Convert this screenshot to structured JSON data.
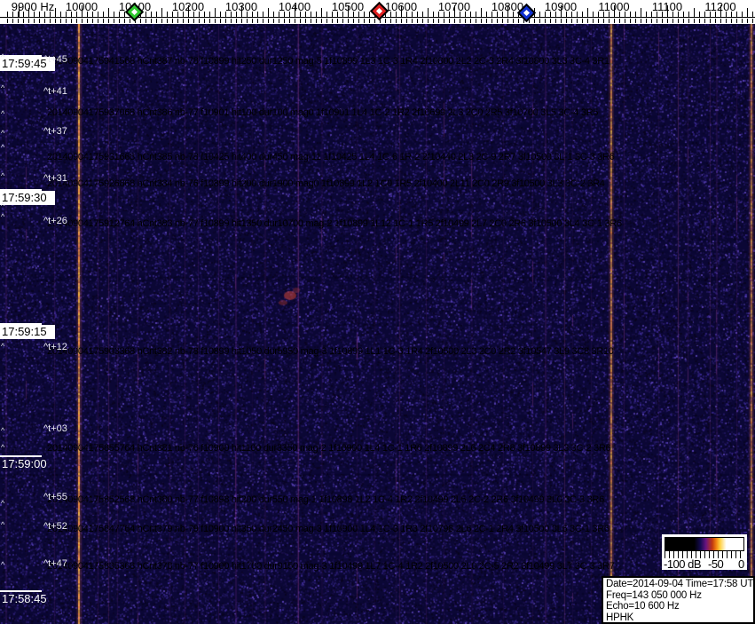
{
  "ruler": {
    "labels": [
      "9900 Hz",
      "10000",
      "10100",
      "10200",
      "10300",
      "10400",
      "10500",
      "10600",
      "10700",
      "10800",
      "10900",
      "11000",
      "11100",
      "11200"
    ],
    "markers": [
      {
        "id": "green",
        "name": "green-diamond-marker",
        "color": "#2ec82e"
      },
      {
        "id": "red",
        "name": "red-diamond-marker",
        "color": "#e02020"
      },
      {
        "id": "blue",
        "name": "blue-diamond-marker",
        "color": "#1030d0"
      }
    ]
  },
  "time_axis": {
    "labels": [
      "17:59:45",
      "17:59:30",
      "17:59:15",
      "17:59:00",
      "17:58:45"
    ]
  },
  "left_marks": {
    "glyph": "^"
  },
  "events": [
    {
      "marker": "^t+45",
      "text": "20140904175941568 hCnt387 nb-78 f10899 hit250 dur1250 mag-5 1f10899 1L3 1C-3 1R4 2f10800 2L2 2C-3 2R4 3f10800 3L3 3C-4 3R1"
    },
    {
      "marker": "^t+41",
      "text": "20140904175937068 hCnt386 nb-77 f10901 hit100 dur100 mag0 1f10901 1L4 1C-2 1R2 2f10699 2L3 2C0 2R5 3f10700 3L5 3C-4 3R5"
    },
    {
      "marker": "^t+37",
      "text": "20140904175931668 hCnt385 nb-78 f10425 hit400 dur450 mag-11 1f10425 1L4 1C-6 1R-2 2f10440 2L3 2C-9 2R7 3f10500 3L-1 3C-3 3R6"
    },
    {
      "marker": "^t+31",
      "text": "20140904175926868 hCnt384 nb-76 f10899 hit200 dur1900 mag0 1f10899 1L2 1C0 1R5 2f10400 2L11 2C0 2R9 3f10500 3L3 3C-2 3R4"
    },
    {
      "marker": "^t+26",
      "text": "20140904175912764 hCnt383 nb-77 f10899 hit1350 dur10700 mag-2 1f10899 1L12 1C-1 1R5 2f10499 2L7 2C0 2R6 3f10500 3L4 3C-1 3R6"
    },
    {
      "marker": "^t+12",
      "text": "20140904175903368 hCnt382 nb-78 f10899 hit1050 dur5950 mag-3 1f10899 1L1 1C-3 1R4 2f10500 2L3 2C0 2R2 3f10547 3L9 3C8 3R10"
    },
    {
      "marker": "^t+03",
      "text": "20140904175855764 hCnt381 nb-76 f10900 hit1100 dur3350 mag-2 1f10900 1L4 1C-1 1R6 2f10899 2L6 2C4 2R8 3f10899 3L3 3C-2 3R6"
    },
    {
      "marker": "^t+55",
      "text": "20140904175852568 hCnt380 nb-77 f10898 hit200 dur550 mag-1 1f10898 1L2 1C-4 1R2 2f10499 2L5 2C-2 2R6 3f10499 3L0 3C-3 3R6"
    },
    {
      "marker": "^t+52",
      "text": "20140904175847764 hCnt379 nb-79 f10900 hit350 dur2450 mag-3 1f10900 1L4 1C-3 1R3 2f10798 2L6 2C-1 2R4 3f10500 3L6 3C-1 3R6"
    },
    {
      "marker": "^t+47",
      "text": "20140904175835368 hCnt378 nb-77 f10900 hit1700 dur9150 mag-3 1f10499 1L7 1C-4 1R2 2f10500 2L0 2C-5 2R2 3f10499 3L7 3C-3 3R7"
    }
  ],
  "colorbar": {
    "labels": [
      "-100 dB",
      "-50",
      "0"
    ]
  },
  "info_box": {
    "lines": [
      "Date=2014-09-04 Time=17:58 UTC",
      "Freq=143 050 000 Hz",
      "Echo=10 600 Hz",
      "HPHK"
    ]
  },
  "colors": {
    "background": "#0b0735",
    "signal_line": "#f29650",
    "faint_line": "#b44aa8",
    "speckle": "#3c2a90",
    "echo_blob": "#d24637"
  }
}
